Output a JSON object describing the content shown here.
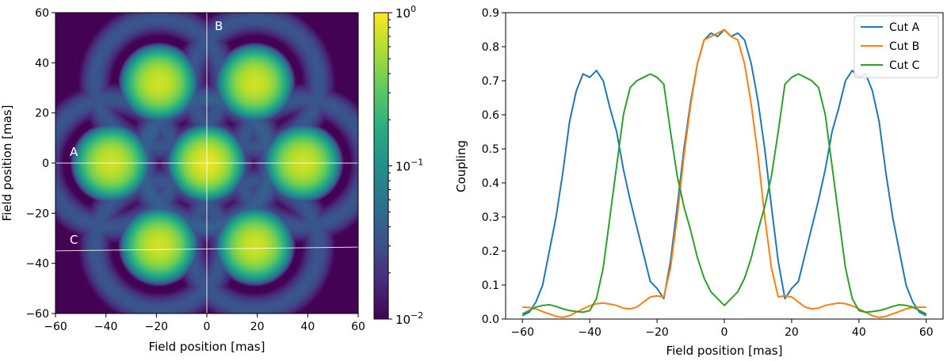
{
  "chart_data": [
    {
      "type": "heatmap",
      "title": "",
      "xlabel": "Field position [mas]",
      "ylabel": "Field position [mas]",
      "xlim": [
        -60,
        60
      ],
      "ylim": [
        -60,
        60
      ],
      "xticks": [
        -60,
        -40,
        -20,
        0,
        20,
        40,
        60
      ],
      "yticks": [
        -60,
        -40,
        -20,
        0,
        20,
        40,
        60
      ],
      "colormap": "viridis",
      "colorbar": {
        "scale": "log",
        "range": [
          0.01,
          1
        ],
        "ticks": [
          {
            "value": 1,
            "base": "10",
            "exp": "0"
          },
          {
            "value": 0.1,
            "base": "10",
            "exp": "−1"
          },
          {
            "value": 0.01,
            "base": "10",
            "exp": "−2"
          }
        ]
      },
      "peaks": [
        {
          "x": -19,
          "y": 32,
          "value": 0.72
        },
        {
          "x": 19,
          "y": 32,
          "value": 0.72
        },
        {
          "x": -38,
          "y": 0,
          "value": 0.72
        },
        {
          "x": 0,
          "y": 0,
          "value": 0.85
        },
        {
          "x": 38,
          "y": 0,
          "value": 0.72
        },
        {
          "x": -19,
          "y": -33,
          "value": 0.72
        },
        {
          "x": 19,
          "y": -33,
          "value": 0.72
        }
      ],
      "cuts": [
        {
          "label": "A",
          "x1": -60,
          "y1": 0,
          "x2": 60,
          "y2": 0
        },
        {
          "label": "B",
          "x1": 0,
          "y1": -60,
          "x2": 0,
          "y2": 60
        },
        {
          "label": "C",
          "x1": -60,
          "y1": -35,
          "x2": 60,
          "y2": -33.5
        }
      ]
    },
    {
      "type": "line",
      "title": "",
      "xlabel": "Field position [mas]",
      "ylabel": "Coupling",
      "xlim": [
        -65,
        65
      ],
      "ylim": [
        0,
        0.9
      ],
      "xticks": [
        -60,
        -40,
        -20,
        0,
        20,
        40,
        60
      ],
      "yticks": [
        0.0,
        0.1,
        0.2,
        0.3,
        0.4,
        0.5,
        0.6,
        0.7,
        0.8,
        0.9
      ],
      "legend": "top-right",
      "series": [
        {
          "name": "Cut A",
          "color": "#1f77b4",
          "x": [
            -60,
            -58,
            -56,
            -54,
            -52,
            -50,
            -48,
            -46,
            -44,
            -42,
            -40,
            -38,
            -36,
            -34,
            -32,
            -30,
            -28,
            -26,
            -24,
            -22,
            -20,
            -18,
            -16,
            -14,
            -12,
            -10,
            -8,
            -6,
            -4,
            -2,
            0,
            2,
            4,
            6,
            8,
            10,
            12,
            14,
            16,
            18,
            20,
            22,
            24,
            26,
            28,
            30,
            32,
            34,
            36,
            38,
            40,
            42,
            44,
            46,
            48,
            50,
            52,
            54,
            56,
            58,
            60
          ],
          "y": [
            0.01,
            0.02,
            0.05,
            0.1,
            0.2,
            0.3,
            0.43,
            0.58,
            0.67,
            0.72,
            0.71,
            0.73,
            0.7,
            0.62,
            0.55,
            0.44,
            0.35,
            0.27,
            0.19,
            0.11,
            0.09,
            0.06,
            0.17,
            0.33,
            0.5,
            0.64,
            0.75,
            0.82,
            0.84,
            0.83,
            0.85,
            0.83,
            0.84,
            0.82,
            0.75,
            0.64,
            0.5,
            0.33,
            0.17,
            0.06,
            0.09,
            0.11,
            0.19,
            0.27,
            0.35,
            0.44,
            0.55,
            0.62,
            0.7,
            0.73,
            0.71,
            0.72,
            0.67,
            0.58,
            0.43,
            0.3,
            0.2,
            0.1,
            0.05,
            0.02,
            0.01
          ]
        },
        {
          "name": "Cut B",
          "color": "#ff7f0e",
          "x": [
            -60,
            -58,
            -56,
            -54,
            -52,
            -50,
            -48,
            -46,
            -44,
            -42,
            -40,
            -38,
            -36,
            -34,
            -32,
            -30,
            -28,
            -26,
            -24,
            -22,
            -20,
            -18,
            -16,
            -14,
            -12,
            -10,
            -8,
            -6,
            -4,
            -2,
            0,
            2,
            4,
            6,
            8,
            10,
            12,
            14,
            16,
            18,
            20,
            22,
            24,
            26,
            28,
            30,
            32,
            34,
            36,
            38,
            40,
            42,
            44,
            46,
            48,
            50,
            52,
            54,
            56,
            58,
            60
          ],
          "y": [
            0.035,
            0.034,
            0.03,
            0.022,
            0.015,
            0.008,
            0.005,
            0.01,
            0.02,
            0.03,
            0.039,
            0.045,
            0.047,
            0.044,
            0.04,
            0.032,
            0.03,
            0.035,
            0.05,
            0.065,
            0.068,
            0.065,
            0.15,
            0.3,
            0.48,
            0.63,
            0.75,
            0.82,
            0.83,
            0.84,
            0.85,
            0.83,
            0.82,
            0.75,
            0.63,
            0.48,
            0.3,
            0.15,
            0.065,
            0.068,
            0.065,
            0.05,
            0.035,
            0.03,
            0.032,
            0.04,
            0.044,
            0.047,
            0.045,
            0.039,
            0.03,
            0.02,
            0.01,
            0.005,
            0.008,
            0.015,
            0.022,
            0.03,
            0.034,
            0.035,
            0.035
          ]
        },
        {
          "name": "Cut C",
          "color": "#2ca02c",
          "x": [
            -60,
            -58,
            -56,
            -54,
            -52,
            -50,
            -48,
            -46,
            -44,
            -42,
            -40,
            -38,
            -36,
            -34,
            -32,
            -30,
            -28,
            -26,
            -24,
            -22,
            -20,
            -18,
            -16,
            -14,
            -12,
            -10,
            -8,
            -6,
            -4,
            -2,
            0,
            2,
            4,
            6,
            8,
            10,
            12,
            14,
            16,
            18,
            20,
            22,
            24,
            26,
            28,
            30,
            32,
            34,
            36,
            38,
            40,
            42,
            44,
            46,
            48,
            50,
            52,
            54,
            56,
            58,
            60
          ],
          "y": [
            0.015,
            0.025,
            0.035,
            0.04,
            0.042,
            0.037,
            0.03,
            0.025,
            0.022,
            0.02,
            0.025,
            0.06,
            0.15,
            0.3,
            0.45,
            0.6,
            0.68,
            0.7,
            0.71,
            0.72,
            0.71,
            0.69,
            0.55,
            0.42,
            0.33,
            0.26,
            0.18,
            0.12,
            0.08,
            0.06,
            0.04,
            0.06,
            0.08,
            0.12,
            0.18,
            0.26,
            0.33,
            0.42,
            0.55,
            0.69,
            0.71,
            0.72,
            0.71,
            0.7,
            0.68,
            0.6,
            0.45,
            0.3,
            0.15,
            0.06,
            0.025,
            0.02,
            0.022,
            0.025,
            0.03,
            0.037,
            0.042,
            0.04,
            0.035,
            0.025,
            0.015
          ]
        }
      ]
    }
  ]
}
